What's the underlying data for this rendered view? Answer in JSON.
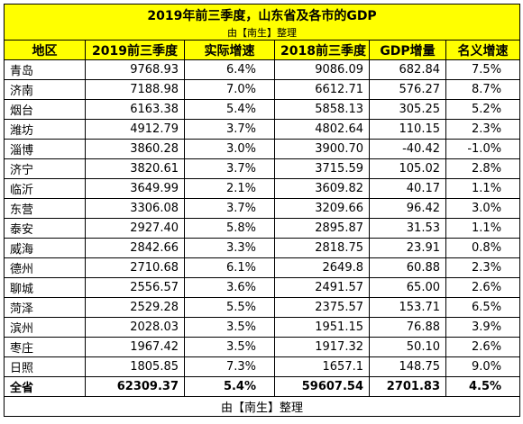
{
  "header": {
    "title": "2019年前三季度，山东省及各市的GDP",
    "subtitle": "由【南生】整理"
  },
  "table": {
    "columns": [
      "地区",
      "2019前三季度",
      "实际增速",
      "2018前三季度",
      "GDP增量",
      "名义增速"
    ],
    "rows": [
      [
        "青岛",
        "9768.93",
        "6.4%",
        "9086.09",
        "682.84",
        "7.5%"
      ],
      [
        "济南",
        "7188.98",
        "7.0%",
        "6612.71",
        "576.27",
        "8.7%"
      ],
      [
        "烟台",
        "6163.38",
        "5.4%",
        "5858.13",
        "305.25",
        "5.2%"
      ],
      [
        "潍坊",
        "4912.79",
        "3.7%",
        "4802.64",
        "110.15",
        "2.3%"
      ],
      [
        "淄博",
        "3860.28",
        "3.0%",
        "3900.70",
        "-40.42",
        "-1.0%"
      ],
      [
        "济宁",
        "3820.61",
        "3.7%",
        "3715.59",
        "105.02",
        "2.8%"
      ],
      [
        "临沂",
        "3649.99",
        "2.1%",
        "3609.82",
        "40.17",
        "1.1%"
      ],
      [
        "东营",
        "3306.08",
        "3.7%",
        "3209.66",
        "96.42",
        "3.0%"
      ],
      [
        "泰安",
        "2927.40",
        "5.8%",
        "2895.87",
        "31.53",
        "1.1%"
      ],
      [
        "威海",
        "2842.66",
        "3.3%",
        "2818.75",
        "23.91",
        "0.8%"
      ],
      [
        "德州",
        "2710.68",
        "6.1%",
        "2649.8",
        "60.88",
        "2.3%"
      ],
      [
        "聊城",
        "2556.57",
        "3.6%",
        "2491.57",
        "65.00",
        "2.6%"
      ],
      [
        "菏泽",
        "2529.28",
        "5.5%",
        "2375.57",
        "153.71",
        "6.5%"
      ],
      [
        "滨州",
        "2028.03",
        "3.5%",
        "1951.15",
        "76.88",
        "3.9%"
      ],
      [
        "枣庄",
        "1967.42",
        "3.5%",
        "1917.32",
        "50.10",
        "2.6%"
      ],
      [
        "日照",
        "1805.85",
        "7.3%",
        "1657.1",
        "148.75",
        "9.0%"
      ]
    ],
    "total": [
      "全省",
      "62309.37",
      "5.4%",
      "59607.54",
      "2701.83",
      "4.5%"
    ]
  },
  "footer": "由【南生】整理"
}
